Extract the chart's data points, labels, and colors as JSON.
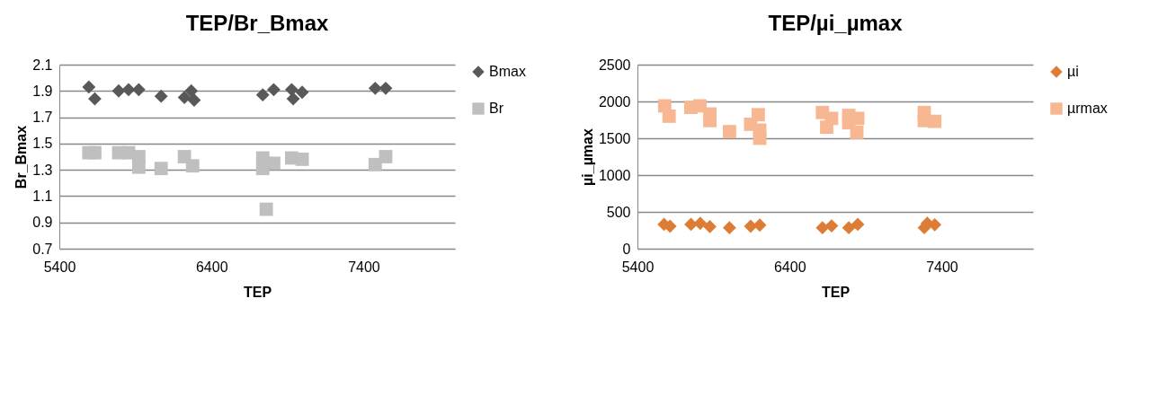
{
  "chart_data": [
    {
      "type": "scatter",
      "title": "TEP/Br_Bmax",
      "xlabel": "TEP",
      "ylabel": "Br_Bmax",
      "xlim": [
        5400,
        8000
      ],
      "xticks": [
        5400,
        6400,
        7400
      ],
      "ylim": [
        0.7,
        2.1
      ],
      "yticks": [
        0.7,
        0.9,
        1.1,
        1.3,
        1.5,
        1.7,
        1.9,
        2.1
      ],
      "grid": "y",
      "legend": "right",
      "series": [
        {
          "name": "Bmax",
          "color": "#595959",
          "marker": "diamond",
          "x": [
            5594,
            5633,
            5790,
            5855,
            5922,
            6069,
            6222,
            6267,
            6286,
            6737,
            6809,
            6927,
            6937,
            6996,
            7476,
            7545
          ],
          "values": [
            1.93,
            1.84,
            1.9,
            1.91,
            1.91,
            1.86,
            1.85,
            1.9,
            1.83,
            1.87,
            1.91,
            1.91,
            1.84,
            1.89,
            1.92,
            1.92
          ]
        },
        {
          "name": "Br",
          "color": "#bfbfbf",
          "marker": "square",
          "x": [
            5594,
            5633,
            5790,
            5855,
            5922,
            5922,
            6069,
            6222,
            6276,
            6737,
            6737,
            6760,
            6809,
            6927,
            6996,
            7476,
            7545
          ],
          "values": [
            1.43,
            1.43,
            1.43,
            1.43,
            1.4,
            1.32,
            1.31,
            1.4,
            1.33,
            1.39,
            1.31,
            1.0,
            1.35,
            1.39,
            1.38,
            1.34,
            1.4
          ]
        }
      ]
    },
    {
      "type": "scatter",
      "title": "TEP/µi_µmax",
      "xlabel": "TEP",
      "ylabel": "µi_µmax",
      "xlim": [
        5400,
        8000
      ],
      "xticks": [
        5400,
        6400,
        7400
      ],
      "ylim": [
        0,
        2500
      ],
      "yticks": [
        0,
        500,
        1000,
        1500,
        2000,
        2500
      ],
      "grid": "y",
      "legend": "right",
      "series": [
        {
          "name": "µi",
          "color": "#dd7d35",
          "marker": "diamond",
          "x": [
            5575,
            5614,
            5752,
            5813,
            5876,
            6005,
            6144,
            6204,
            6616,
            6676,
            6789,
            6848,
            7285,
            7305,
            7354
          ],
          "values": [
            330,
            305,
            330,
            345,
            300,
            285,
            305,
            320,
            285,
            310,
            285,
            330,
            285,
            345,
            325
          ]
        },
        {
          "name": "µrmax",
          "color": "#f7b792",
          "marker": "square",
          "x": [
            5579,
            5608,
            5751,
            5811,
            5876,
            5876,
            6005,
            6144,
            6194,
            6204,
            6204,
            6616,
            6644,
            6676,
            6789,
            6789,
            6848,
            6842,
            7285,
            7285,
            7354
          ],
          "values": [
            1940,
            1800,
            1920,
            1940,
            1830,
            1740,
            1590,
            1690,
            1820,
            1500,
            1610,
            1850,
            1650,
            1770,
            1810,
            1710,
            1770,
            1580,
            1850,
            1740,
            1730
          ]
        }
      ]
    }
  ]
}
